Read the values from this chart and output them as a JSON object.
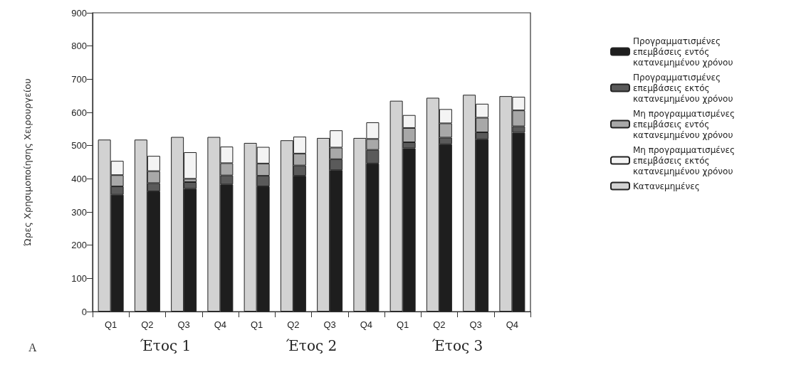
{
  "chart_data": {
    "type": "bar",
    "ylabel": "Ώρες Χρησιμοποίησης Χειρουργείου",
    "categories": [
      "Q1",
      "Q2",
      "Q3",
      "Q4",
      "Q1",
      "Q2",
      "Q3",
      "Q4",
      "Q1",
      "Q2",
      "Q3",
      "Q4"
    ],
    "series": [
      {
        "name": "Προγραμματισμένες επεμβάσεις εντός κατανεμημένου χρόνου",
        "color": "#1e1e1e",
        "base": [
          0,
          0,
          0,
          0,
          0,
          0,
          0,
          0,
          0,
          0,
          0,
          0
        ],
        "values": [
          352,
          362,
          370,
          383,
          377,
          409,
          426,
          446,
          492,
          504,
          519,
          539
        ]
      },
      {
        "name": "Προγραμματισμένες επεμβάσεις εκτός κατανεμημένου χρόνου",
        "color": "#5a5a5a",
        "base": [
          352,
          362,
          370,
          383,
          377,
          409,
          426,
          446,
          492,
          504,
          519,
          539
        ],
        "values": [
          25,
          25,
          20,
          27,
          32,
          31,
          33,
          41,
          18,
          20,
          21,
          19
        ]
      },
      {
        "name": "Μη προγραμματισμένες επεμβάσεις εντός κατανεμημένου χρόνου",
        "color": "#a8a8a8",
        "base": [
          377,
          387,
          390,
          410,
          409,
          440,
          459,
          487,
          510,
          524,
          540,
          558
        ],
        "values": [
          34,
          36,
          10,
          37,
          37,
          36,
          35,
          33,
          43,
          43,
          44,
          48
        ]
      },
      {
        "name": "Μη προγραμματισμένες επεμβάσεις εκτός κατανεμημένου χρόνου",
        "color": "#f4f4f4",
        "base": [
          411,
          423,
          400,
          447,
          446,
          476,
          494,
          520,
          553,
          567,
          584,
          606
        ],
        "values": [
          43,
          46,
          80,
          50,
          50,
          51,
          52,
          50,
          39,
          43,
          42,
          41
        ]
      },
      {
        "name": "Κατανεμημένες",
        "color": "#d2d2d2",
        "values": [
          518,
          518,
          526,
          526,
          508,
          516,
          523,
          523,
          635,
          644,
          653,
          649
        ]
      }
    ],
    "ylim": [
      0,
      900
    ],
    "yticks": [
      0,
      100,
      200,
      300,
      400,
      500,
      600,
      700,
      800,
      900
    ],
    "grid": false,
    "legend": "right",
    "annotations": [
      "A",
      "Έτος 1",
      "Έτος 2",
      "Έτος 3"
    ]
  }
}
